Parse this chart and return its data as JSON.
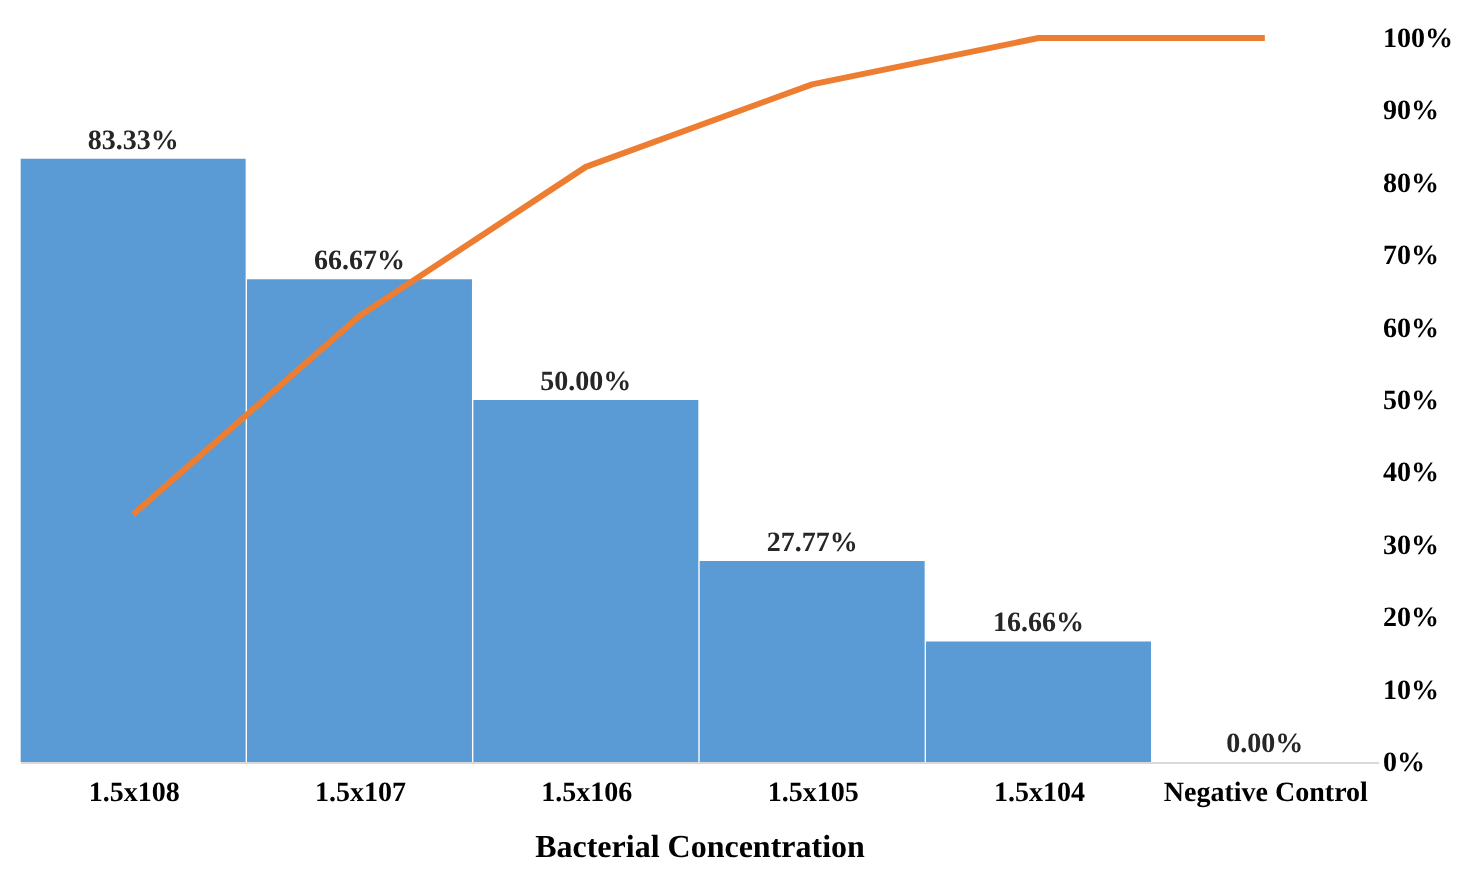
{
  "chart_data": {
    "type": "bar",
    "xlabel": "Bacterial Concentration",
    "categories": [
      "1.5x108",
      "1.5x107",
      "1.5x106",
      "1.5x105",
      "1.5x104",
      "Negative Control"
    ],
    "series": [
      {
        "color": "#5b9bd5",
        "values": [
          83.33,
          66.67,
          50.0,
          27.77,
          16.66,
          0.0
        ],
        "value_labels": [
          "83.33%",
          "66.67%",
          "50.00%",
          "27.77%",
          "16.66%",
          "0.00%"
        ]
      },
      {
        "type": "line",
        "color": "#ed7d31",
        "values": [
          34.2,
          61.6,
          82.2,
          93.6,
          100,
          100
        ]
      }
    ],
    "ylim": [
      0,
      100
    ],
    "yticks": [
      {
        "value": 0,
        "label": "0%"
      },
      {
        "value": 10,
        "label": "10%"
      },
      {
        "value": 20,
        "label": "20%"
      },
      {
        "value": 30,
        "label": "30%"
      },
      {
        "value": 40,
        "label": "40%"
      },
      {
        "value": 50,
        "label": "50%"
      },
      {
        "value": 60,
        "label": "60%"
      },
      {
        "value": 70,
        "label": "70%"
      },
      {
        "value": 80,
        "label": "80%"
      },
      {
        "value": 90,
        "label": "90%"
      },
      {
        "value": 100,
        "label": "100%"
      }
    ],
    "grid": false,
    "marker": "none",
    "line_style": "solid"
  }
}
